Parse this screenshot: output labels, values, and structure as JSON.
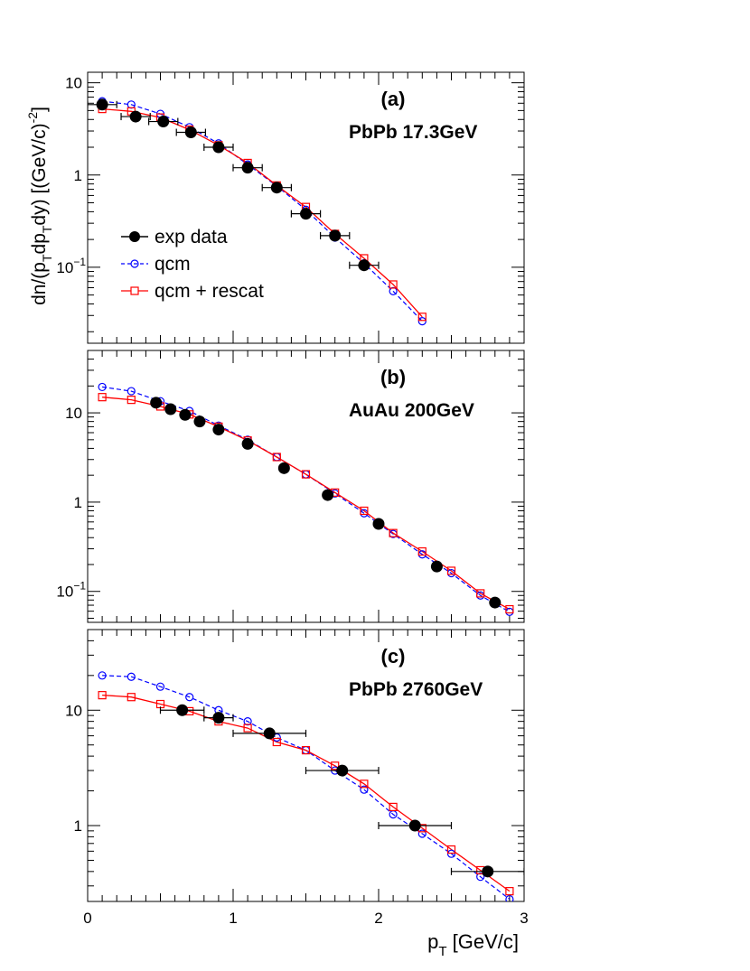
{
  "figure": {
    "ylabel_main": "dn/(p",
    "ylabel_sub1": "T",
    "ylabel_mid": "dp",
    "ylabel_sub2": "T",
    "ylabel_end": "dy) [(GeV/c)",
    "ylabel_exp": "-2",
    "ylabel_close": "]",
    "xlabel_main": "p",
    "xlabel_sub": "T",
    "xlabel_end": " [GeV/c]",
    "x_ticks": [
      "0",
      "1",
      "2",
      "3"
    ]
  },
  "colors": {
    "exp": "#000000",
    "qcm": "#0000ff",
    "rescat": "#ff0000"
  },
  "legend": {
    "placement": "left-center of panel (a)",
    "entries": [
      {
        "label": "exp data",
        "series": "exp"
      },
      {
        "label": "qcm",
        "series": "qcm"
      },
      {
        "label": "qcm + rescat",
        "series": "rescat"
      }
    ]
  },
  "chart_data": [
    {
      "type": "scatter",
      "panel": "(a)",
      "system": "PbPb 17.3GeV",
      "xlim": [
        0,
        3
      ],
      "ylim": [
        0.015,
        13
      ],
      "yscale": "log",
      "y_ticks": [
        {
          "value": 10,
          "label": "10",
          "exp": ""
        },
        {
          "value": 1,
          "label": "1",
          "exp": ""
        },
        {
          "value": 0.1,
          "label": "10",
          "exp": "−1"
        }
      ],
      "series": [
        {
          "name": "exp data",
          "x": [
            0.1,
            0.33,
            0.52,
            0.71,
            0.9,
            1.1,
            1.3,
            1.5,
            1.7,
            1.9
          ],
          "y": [
            5.8,
            4.3,
            3.8,
            2.9,
            2.0,
            1.2,
            0.73,
            0.38,
            0.22,
            0.105
          ],
          "xerr": [
            0.1,
            0.1,
            0.1,
            0.1,
            0.1,
            0.1,
            0.1,
            0.1,
            0.1,
            0.1
          ]
        },
        {
          "name": "qcm",
          "x": [
            0.1,
            0.3,
            0.5,
            0.7,
            0.9,
            1.1,
            1.3,
            1.5,
            1.7,
            1.9,
            2.1,
            2.3
          ],
          "y": [
            6.3,
            5.8,
            4.6,
            3.3,
            2.2,
            1.3,
            0.76,
            0.42,
            0.21,
            0.11,
            0.055,
            0.026
          ]
        },
        {
          "name": "qcm + rescat",
          "x": [
            0.1,
            0.3,
            0.5,
            0.7,
            0.9,
            1.1,
            1.3,
            1.5,
            1.7,
            1.9,
            2.1,
            2.3
          ],
          "y": [
            5.2,
            4.9,
            4.2,
            3.1,
            2.1,
            1.35,
            0.77,
            0.45,
            0.23,
            0.125,
            0.065,
            0.029
          ]
        }
      ]
    },
    {
      "type": "scatter",
      "panel": "(b)",
      "system": "AuAu 200GeV",
      "xlim": [
        0,
        3
      ],
      "ylim": [
        0.045,
        50
      ],
      "yscale": "log",
      "y_ticks": [
        {
          "value": 10,
          "label": "10",
          "exp": ""
        },
        {
          "value": 1,
          "label": "1",
          "exp": ""
        },
        {
          "value": 0.1,
          "label": "10",
          "exp": "−1"
        }
      ],
      "series": [
        {
          "name": "exp data",
          "x": [
            0.47,
            0.57,
            0.67,
            0.77,
            0.9,
            1.1,
            1.35,
            1.65,
            2.0,
            2.4,
            2.8
          ],
          "y": [
            13.0,
            11.0,
            9.5,
            8.0,
            6.5,
            4.5,
            2.4,
            1.2,
            0.57,
            0.19,
            0.075
          ],
          "xerr": [
            0,
            0,
            0,
            0,
            0,
            0,
            0,
            0,
            0,
            0,
            0
          ]
        },
        {
          "name": "qcm",
          "x": [
            0.1,
            0.3,
            0.5,
            0.7,
            0.9,
            1.1,
            1.3,
            1.5,
            1.7,
            1.9,
            2.1,
            2.3,
            2.5,
            2.7,
            2.9
          ],
          "y": [
            19.5,
            17.5,
            13.5,
            10.5,
            7.2,
            5.0,
            3.2,
            2.05,
            1.25,
            0.75,
            0.44,
            0.26,
            0.16,
            0.09,
            0.059
          ]
        },
        {
          "name": "qcm + rescat",
          "x": [
            0.1,
            0.3,
            0.5,
            0.7,
            0.9,
            1.1,
            1.3,
            1.5,
            1.7,
            1.9,
            2.1,
            2.3,
            2.5,
            2.7,
            2.9
          ],
          "y": [
            15.0,
            14.0,
            11.8,
            9.6,
            7.0,
            4.9,
            3.2,
            2.05,
            1.28,
            0.8,
            0.45,
            0.28,
            0.17,
            0.095,
            0.063
          ]
        }
      ]
    },
    {
      "type": "scatter",
      "panel": "(c)",
      "system": "PbPb 2760GeV",
      "xlim": [
        0,
        3
      ],
      "ylim": [
        0.22,
        50
      ],
      "yscale": "log",
      "y_ticks": [
        {
          "value": 10,
          "label": "10",
          "exp": ""
        },
        {
          "value": 1,
          "label": "1",
          "exp": ""
        }
      ],
      "series": [
        {
          "name": "exp data",
          "x": [
            0.65,
            0.9,
            1.25,
            1.75,
            2.25,
            2.75
          ],
          "y": [
            10.0,
            8.6,
            6.3,
            3.0,
            1.0,
            0.4
          ],
          "xerr": [
            0.15,
            0.1,
            0.25,
            0.25,
            0.25,
            0.25
          ]
        },
        {
          "name": "qcm",
          "x": [
            0.1,
            0.3,
            0.5,
            0.7,
            0.9,
            1.1,
            1.3,
            1.5,
            1.7,
            1.9,
            2.1,
            2.3,
            2.5,
            2.7,
            2.9
          ],
          "y": [
            20.0,
            19.5,
            16.0,
            13.0,
            10.0,
            8.0,
            5.8,
            4.5,
            3.0,
            2.05,
            1.25,
            0.85,
            0.57,
            0.36,
            0.23
          ]
        },
        {
          "name": "qcm + rescat",
          "x": [
            0.1,
            0.3,
            0.5,
            0.7,
            0.9,
            1.1,
            1.3,
            1.5,
            1.7,
            1.9,
            2.1,
            2.3,
            2.5,
            2.7,
            2.9
          ],
          "y": [
            13.5,
            13.0,
            11.3,
            9.8,
            8.0,
            7.0,
            5.3,
            4.5,
            3.3,
            2.3,
            1.45,
            0.95,
            0.62,
            0.41,
            0.27
          ]
        }
      ]
    }
  ]
}
